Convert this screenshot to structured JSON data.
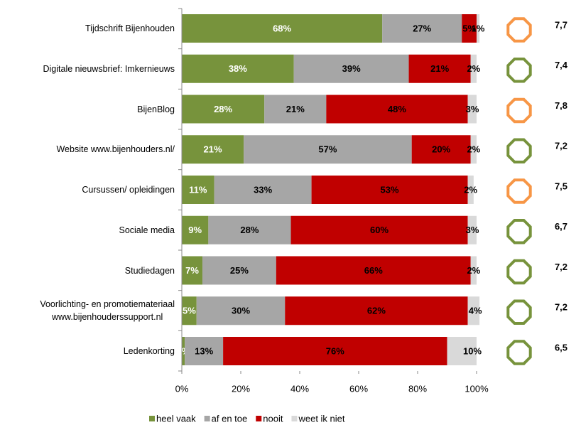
{
  "chart_data": {
    "type": "stacked-bar-horizontal",
    "categories": [
      "Tijdschrift Bijenhouden",
      "Digitale nieuwsbrief: Imkernieuws",
      "BijenBlog",
      "Website www.bijenhouders.nl/",
      "Cursussen/ opleidingen",
      "Sociale media",
      "Studiedagen",
      "Voorlichting- en promotiemateriaal\nwww.bijenhouderssupport.nl",
      "Ledenkorting"
    ],
    "series": [
      {
        "name": "heel vaak",
        "color": "#77933c",
        "label_color": "#ffffff",
        "values": [
          68,
          38,
          28,
          21,
          11,
          9,
          7,
          5,
          1
        ],
        "value_labels": [
          "68%",
          "38%",
          "28%",
          "21%",
          "11%",
          "9%",
          "7%",
          "5%",
          "1%"
        ]
      },
      {
        "name": "af en toe",
        "color": "#a6a6a6",
        "label_color": "#000000",
        "values": [
          27,
          39,
          21,
          57,
          33,
          28,
          25,
          30,
          13
        ],
        "value_labels": [
          "27%",
          "39%",
          "21%",
          "57%",
          "33%",
          "28%",
          "25%",
          "30%",
          "13%"
        ]
      },
      {
        "name": "nooit",
        "color": "#c00000",
        "label_color": "#000000",
        "values": [
          5,
          21,
          48,
          20,
          53,
          60,
          66,
          62,
          76
        ],
        "value_labels": [
          "5%",
          "21%",
          "48%",
          "20%",
          "53%",
          "60%",
          "66%",
          "62%",
          "76%"
        ]
      },
      {
        "name": "weet ik niet",
        "color": "#d9d9d9",
        "label_color": "#000000",
        "values": [
          1,
          2,
          3,
          2,
          2,
          3,
          2,
          4,
          10
        ],
        "value_labels": [
          "1%",
          "2%",
          "3%",
          "2%",
          "2%",
          "3%",
          "2%",
          "4%",
          "10%"
        ]
      }
    ],
    "xlim": [
      0,
      100
    ],
    "xticks": [
      {
        "value": 0,
        "label": "0%"
      },
      {
        "value": 20,
        "label": "20%"
      },
      {
        "value": 40,
        "label": "40%"
      },
      {
        "value": 60,
        "label": "60%"
      },
      {
        "value": 80,
        "label": "80%"
      },
      {
        "value": 100,
        "label": "100%"
      }
    ],
    "scores": [
      {
        "label": "7,7",
        "color": "#f79646"
      },
      {
        "label": "7,4",
        "color": "#77933c"
      },
      {
        "label": "7,8",
        "color": "#f79646"
      },
      {
        "label": "7,2",
        "color": "#77933c"
      },
      {
        "label": "7,5",
        "color": "#f79646"
      },
      {
        "label": "6,7",
        "color": "#77933c"
      },
      {
        "label": "7,2",
        "color": "#77933c"
      },
      {
        "label": "7,2",
        "color": "#77933c"
      },
      {
        "label": "6,5",
        "color": "#77933c"
      }
    ],
    "legend": "bottom"
  }
}
